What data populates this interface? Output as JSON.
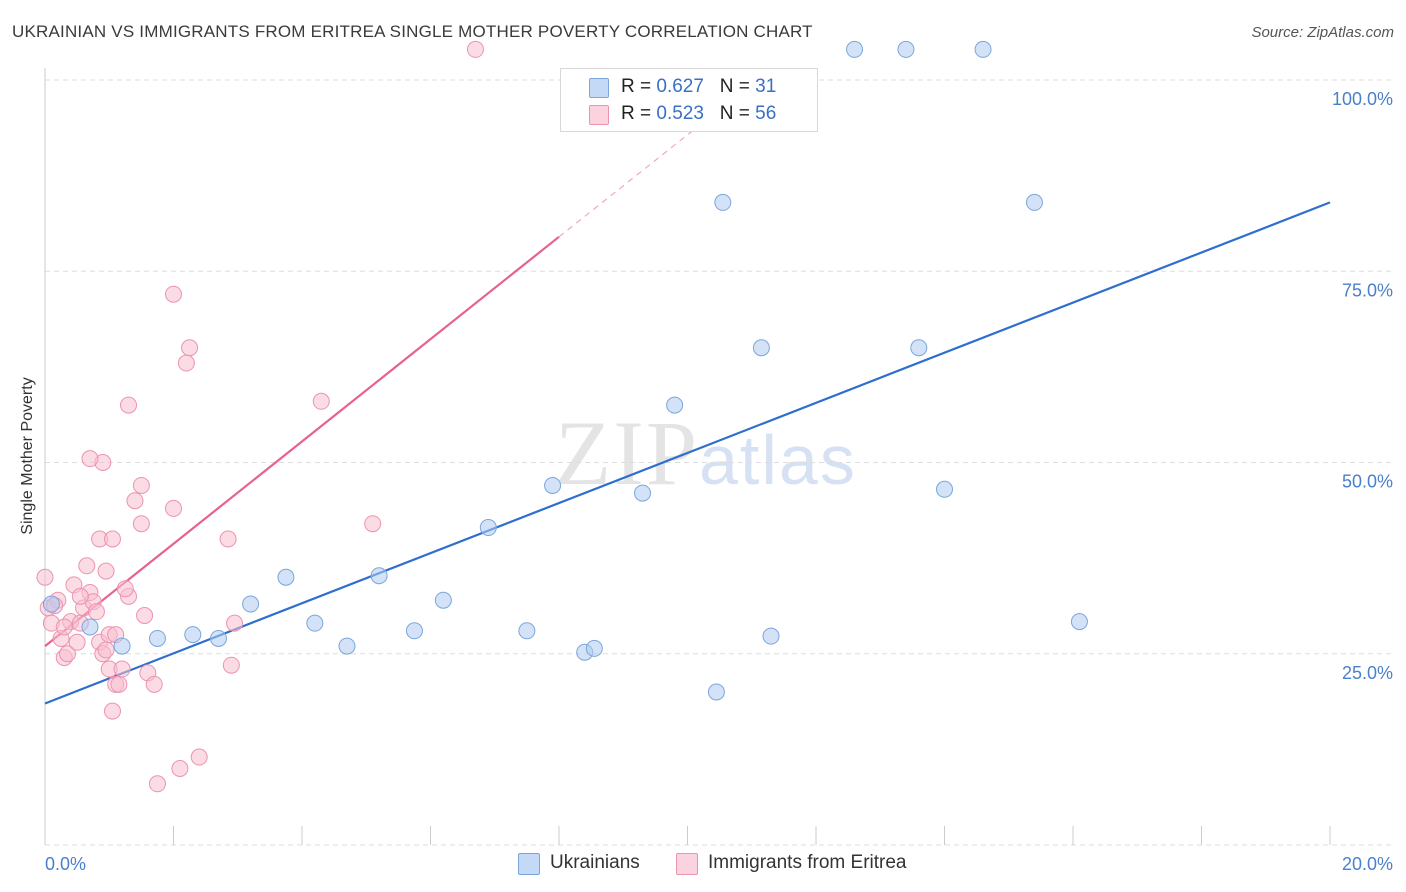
{
  "header": {
    "title": "UKRAINIAN VS IMMIGRANTS FROM ERITREA SINGLE MOTHER POVERTY CORRELATION CHART",
    "source": "Source: ZipAtlas.com"
  },
  "watermark": {
    "zip": "ZIP",
    "atlas": "atlas"
  },
  "legend": {
    "series1": {
      "r_label": "R = ",
      "r_value": "0.627",
      "n_label": "N = ",
      "n_value": "31"
    },
    "series2": {
      "r_label": "R = ",
      "r_value": "0.523",
      "n_label": "N = ",
      "n_value": "56"
    }
  },
  "bottom_legend": {
    "series1": "Ukrainians",
    "series2": "Immigrants from Eritrea"
  },
  "colors": {
    "blue_fill": "#aecbf0",
    "blue_stroke": "#7aa6dc",
    "blue_line": "#2e6fce",
    "pink_fill": "#f7c0d0",
    "pink_stroke": "#ec93b0",
    "pink_line": "#e8628e",
    "grid": "#dddddd",
    "axis_text": "#4a7fcc"
  },
  "chart_data": {
    "type": "scatter",
    "title": "UKRAINIAN VS IMMIGRANTS FROM ERITREA SINGLE MOTHER POVERTY CORRELATION CHART",
    "xlabel": "",
    "ylabel": "Single Mother Poverty",
    "xlim": [
      0,
      20
    ],
    "ylim": [
      0,
      100
    ],
    "x_tick_labels": [
      "0.0%",
      "20.0%"
    ],
    "y_ticks": [
      25,
      50,
      75,
      100
    ],
    "y_tick_labels": [
      "25.0%",
      "50.0%",
      "75.0%",
      "100.0%"
    ],
    "grid": true,
    "series": [
      {
        "name": "Ukrainians",
        "r": 0.627,
        "n": 31,
        "trend": {
          "x": [
            0,
            20
          ],
          "y": [
            18.5,
            84
          ]
        },
        "points": [
          [
            0.1,
            31.5
          ],
          [
            0.7,
            28.5
          ],
          [
            1.2,
            26
          ],
          [
            1.75,
            27
          ],
          [
            2.3,
            27.5
          ],
          [
            2.7,
            27
          ],
          [
            3.2,
            31.5
          ],
          [
            3.75,
            35
          ],
          [
            4.2,
            29
          ],
          [
            4.7,
            26
          ],
          [
            5.2,
            35.2
          ],
          [
            5.75,
            28
          ],
          [
            6.2,
            32
          ],
          [
            6.9,
            41.5
          ],
          [
            7.5,
            28
          ],
          [
            7.9,
            47
          ],
          [
            8.4,
            25.2
          ],
          [
            8.55,
            25.7
          ],
          [
            9.3,
            46
          ],
          [
            9.8,
            57.5
          ],
          [
            10.45,
            20
          ],
          [
            10.55,
            84
          ],
          [
            11.3,
            27.3
          ],
          [
            11.15,
            65
          ],
          [
            12.6,
            104
          ],
          [
            13.4,
            104
          ],
          [
            13.6,
            65
          ],
          [
            14.0,
            46.5
          ],
          [
            14.6,
            104
          ],
          [
            15.4,
            84
          ],
          [
            16.1,
            29.2
          ]
        ]
      },
      {
        "name": "Immigrants from Eritrea",
        "r": 0.523,
        "n": 56,
        "trend": {
          "x": [
            0,
            8
          ],
          "y": [
            26,
            79.5
          ]
        },
        "trend_dashed": {
          "x": [
            8,
            11
          ],
          "y": [
            79.5,
            99.5
          ]
        },
        "points": [
          [
            0.0,
            35
          ],
          [
            0.05,
            31
          ],
          [
            0.1,
            29
          ],
          [
            0.2,
            32
          ],
          [
            0.25,
            27
          ],
          [
            0.3,
            24.5
          ],
          [
            0.35,
            25
          ],
          [
            0.4,
            29.2
          ],
          [
            0.45,
            34
          ],
          [
            0.5,
            26.5
          ],
          [
            0.55,
            29
          ],
          [
            0.6,
            31
          ],
          [
            0.65,
            36.5
          ],
          [
            0.7,
            33
          ],
          [
            0.75,
            31.8
          ],
          [
            0.8,
            30.5
          ],
          [
            0.85,
            26.5
          ],
          [
            0.9,
            25
          ],
          [
            0.95,
            25.5
          ],
          [
            1.0,
            27.5
          ],
          [
            0.95,
            35.8
          ],
          [
            0.85,
            40
          ],
          [
            1.05,
            40
          ],
          [
            0.9,
            50
          ],
          [
            0.7,
            50.5
          ],
          [
            1.0,
            23
          ],
          [
            1.1,
            21
          ],
          [
            1.05,
            17.5
          ],
          [
            1.15,
            21
          ],
          [
            1.2,
            23
          ],
          [
            1.3,
            32.5
          ],
          [
            1.25,
            33.5
          ],
          [
            1.4,
            45
          ],
          [
            1.3,
            57.5
          ],
          [
            1.5,
            47
          ],
          [
            1.5,
            42
          ],
          [
            1.55,
            30
          ],
          [
            1.6,
            22.5
          ],
          [
            1.7,
            21
          ],
          [
            1.75,
            8
          ],
          [
            2.0,
            44
          ],
          [
            2.1,
            10
          ],
          [
            2.0,
            72
          ],
          [
            2.2,
            63
          ],
          [
            2.25,
            65
          ],
          [
            2.4,
            11.5
          ],
          [
            2.85,
            40
          ],
          [
            2.9,
            23.5
          ],
          [
            2.95,
            29
          ],
          [
            4.3,
            58
          ],
          [
            5.1,
            42
          ],
          [
            6.7,
            104
          ],
          [
            0.15,
            31.3
          ],
          [
            0.3,
            28.5
          ],
          [
            0.55,
            32.5
          ],
          [
            1.1,
            27.5
          ]
        ]
      }
    ]
  }
}
